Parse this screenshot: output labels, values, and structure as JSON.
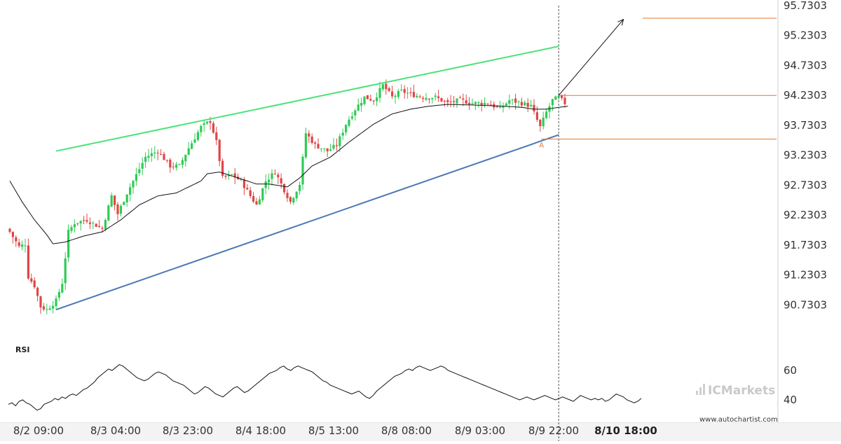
{
  "chart_data": [
    {
      "type": "candlestick",
      "ylim": [
        90.2303,
        95.7303
      ],
      "yticks": [
        "95.7303",
        "95.2303",
        "94.7303",
        "94.2303",
        "93.7303",
        "93.2303",
        "92.7303",
        "92.2303",
        "91.7303",
        "91.2303",
        "90.7303"
      ],
      "xticks": [
        "8/2 09:00",
        "8/3 04:00",
        "8/3 23:00",
        "8/4 18:00",
        "8/5 13:00",
        "8/8 08:00",
        "8/9 03:00",
        "8/9 22:00",
        "8/10 18:00"
      ],
      "highlighted_xtick": "8/10 18:00",
      "close_anchors": [
        [
          0,
          91.95
        ],
        [
          3,
          91.7
        ],
        [
          5,
          91.75
        ],
        [
          6,
          91.2
        ],
        [
          8,
          91.05
        ],
        [
          10,
          90.7
        ],
        [
          12,
          90.65
        ],
        [
          15,
          90.8
        ],
        [
          17,
          91.1
        ],
        [
          19,
          91.95
        ],
        [
          21,
          92.1
        ],
        [
          25,
          92.15
        ],
        [
          30,
          92.0
        ],
        [
          33,
          92.55
        ],
        [
          35,
          92.25
        ],
        [
          38,
          92.6
        ],
        [
          40,
          92.8
        ],
        [
          44,
          93.2
        ],
        [
          48,
          93.3
        ],
        [
          52,
          93.05
        ],
        [
          55,
          93.05
        ],
        [
          58,
          93.35
        ],
        [
          62,
          93.7
        ],
        [
          65,
          93.8
        ],
        [
          67,
          93.45
        ],
        [
          69,
          92.85
        ],
        [
          72,
          92.9
        ],
        [
          75,
          92.8
        ],
        [
          78,
          92.55
        ],
        [
          80,
          92.4
        ],
        [
          83,
          92.8
        ],
        [
          86,
          92.95
        ],
        [
          89,
          92.65
        ],
        [
          91,
          92.45
        ],
        [
          94,
          92.75
        ],
        [
          96,
          93.6
        ],
        [
          99,
          93.4
        ],
        [
          103,
          93.3
        ],
        [
          106,
          93.4
        ],
        [
          109,
          93.75
        ],
        [
          112,
          94.0
        ],
        [
          115,
          94.2
        ],
        [
          118,
          94.15
        ],
        [
          121,
          94.4
        ],
        [
          124,
          94.2
        ],
        [
          127,
          94.3
        ],
        [
          130,
          94.25
        ],
        [
          134,
          94.2
        ],
        [
          138,
          94.2
        ],
        [
          142,
          94.1
        ],
        [
          146,
          94.15
        ],
        [
          150,
          94.1
        ],
        [
          155,
          94.1
        ],
        [
          159,
          94.0
        ],
        [
          162,
          94.15
        ],
        [
          166,
          94.1
        ],
        [
          169,
          94.05
        ],
        [
          172,
          93.7
        ],
        [
          174,
          93.95
        ],
        [
          176,
          94.15
        ],
        [
          178,
          94.2
        ],
        [
          180,
          94.1
        ]
      ],
      "ma_anchors": [
        [
          0,
          92.8
        ],
        [
          4,
          92.45
        ],
        [
          8,
          92.15
        ],
        [
          12,
          91.9
        ],
        [
          14,
          91.75
        ],
        [
          18,
          91.78
        ],
        [
          24,
          91.88
        ],
        [
          30,
          91.95
        ],
        [
          36,
          92.15
        ],
        [
          42,
          92.4
        ],
        [
          48,
          92.55
        ],
        [
          54,
          92.6
        ],
        [
          58,
          92.7
        ],
        [
          62,
          92.8
        ],
        [
          64,
          92.92
        ],
        [
          68,
          92.95
        ],
        [
          74,
          92.85
        ],
        [
          80,
          92.75
        ],
        [
          84,
          92.75
        ],
        [
          90,
          92.7
        ],
        [
          94,
          92.85
        ],
        [
          98,
          93.05
        ],
        [
          104,
          93.2
        ],
        [
          110,
          93.45
        ],
        [
          118,
          93.75
        ],
        [
          124,
          93.92
        ],
        [
          130,
          94.0
        ],
        [
          136,
          94.05
        ],
        [
          142,
          94.08
        ],
        [
          150,
          94.07
        ],
        [
          160,
          94.05
        ],
        [
          166,
          94.03
        ],
        [
          170,
          94.0
        ],
        [
          174,
          94.0
        ],
        [
          178,
          94.03
        ],
        [
          181,
          94.05
        ]
      ],
      "support_line": {
        "from": [
          15,
          90.65
        ],
        "to": [
          178,
          93.57
        ]
      },
      "resistance_line": {
        "from": [
          15,
          93.3
        ],
        "to": [
          178,
          95.05
        ]
      },
      "forecast_arrow": {
        "from": [
          178,
          94.23
        ],
        "to": [
          199,
          95.5
        ]
      },
      "horizontal_levels": [
        94.23,
        93.5,
        95.52
      ],
      "point_label": "A",
      "colors": {
        "bull": "#2ecc55",
        "bear": "#e04646",
        "support": "#4a78b5",
        "resistance": "#4be37a",
        "levels": "#e8762b",
        "ma": "#111111"
      }
    },
    {
      "type": "line",
      "label": "RSI",
      "ylim": [
        20,
        80
      ],
      "yticks": [
        "60",
        "40"
      ],
      "values": [
        37,
        38,
        36,
        39,
        40,
        38,
        37,
        35,
        33,
        34,
        37,
        38,
        39,
        41,
        40,
        42,
        41,
        43,
        44,
        43,
        45,
        47,
        48,
        50,
        52,
        55,
        57,
        59,
        61,
        60,
        62,
        64,
        63,
        61,
        59,
        57,
        55,
        54,
        53,
        54,
        56,
        58,
        59,
        58,
        57,
        55,
        53,
        52,
        51,
        50,
        48,
        46,
        44,
        45,
        47,
        49,
        48,
        46,
        44,
        43,
        42,
        44,
        46,
        48,
        49,
        47,
        45,
        46,
        48,
        50,
        52,
        54,
        56,
        58,
        59,
        60,
        62,
        63,
        61,
        60,
        62,
        63,
        62,
        61,
        60,
        59,
        57,
        55,
        53,
        52,
        50,
        49,
        48,
        47,
        46,
        45,
        44,
        45,
        46,
        44,
        42,
        41,
        43,
        46,
        48,
        50,
        52,
        54,
        56,
        57,
        58,
        60,
        61,
        60,
        62,
        63,
        62,
        61,
        60,
        61,
        62,
        63,
        62,
        60,
        59,
        58,
        57,
        56,
        55,
        54,
        53,
        52,
        51,
        50,
        49,
        48,
        47,
        46,
        45,
        44,
        43,
        42,
        41,
        40,
        41,
        42,
        41,
        40,
        41,
        42,
        43,
        42,
        41,
        40,
        41,
        42,
        41,
        40,
        39,
        41,
        43,
        42,
        41,
        40,
        41,
        40,
        41,
        39,
        40,
        42,
        44,
        43,
        42,
        40,
        39,
        38,
        39,
        41
      ]
    }
  ],
  "watermark": "ICMarkets",
  "credit": "www.autochartist.com",
  "rsi_title": "RSI"
}
